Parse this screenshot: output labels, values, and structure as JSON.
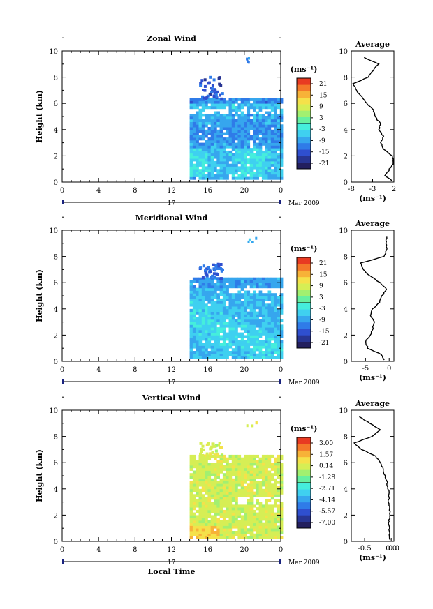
{
  "chart_data": [
    {
      "type": "heatmap",
      "title": "Zonal Wind",
      "ylabel": "Height (km)",
      "ylim": [
        0,
        10
      ],
      "xlim": [
        0,
        24
      ],
      "x_ticks": [
        "0",
        "4",
        "8",
        "12",
        "16",
        "20",
        "0"
      ],
      "y_ticks": [
        "0",
        "2",
        "4",
        "6",
        "8",
        "10"
      ],
      "day_label": "17",
      "date_label": "Mar 2009",
      "colorbar": {
        "unit": "(ms⁻¹)",
        "labels": [
          "21",
          "15",
          "9",
          "3",
          "-3",
          "-9",
          "-15",
          "-21"
        ],
        "range": [
          -24,
          24
        ]
      },
      "data_coverage": {
        "time_start": 14,
        "time_end": 24,
        "height_start": 0.2,
        "height_end": 6.4,
        "sparse_top": [
          7.5,
          9.6
        ]
      },
      "dominant_values": "-6 to -12",
      "average_profile": {
        "title": "Average",
        "xlabel": "(ms⁻¹)",
        "x_ticks": [
          "-8",
          "-3",
          "2"
        ],
        "xlim": [
          -8,
          2
        ],
        "heights": [
          0.1,
          0.5,
          1.0,
          1.5,
          2.0,
          2.5,
          3.0,
          3.5,
          4.0,
          4.5,
          5.0,
          5.5,
          6.0,
          6.5,
          7.0,
          7.5,
          8.0,
          8.5,
          9.0,
          9.5
        ],
        "values": [
          1.5,
          0.0,
          1.0,
          2.0,
          1.6,
          -0.5,
          -1.0,
          -0.5,
          -1.5,
          -1.2,
          -2.5,
          -2.8,
          -4.5,
          -5.5,
          -6.8,
          -7.5,
          -4.0,
          -3.0,
          -1.5,
          -5.0
        ]
      }
    },
    {
      "type": "heatmap",
      "title": "Meridional Wind",
      "ylabel": "Height (km)",
      "ylim": [
        0,
        10
      ],
      "xlim": [
        0,
        24
      ],
      "x_ticks": [
        "0",
        "4",
        "8",
        "12",
        "16",
        "20",
        "0"
      ],
      "y_ticks": [
        "0",
        "2",
        "4",
        "6",
        "8",
        "10"
      ],
      "day_label": "17",
      "date_label": "Mar 2009",
      "colorbar": {
        "unit": "(ms⁻¹)",
        "labels": [
          "21",
          "15",
          "9",
          "3",
          "-3",
          "-9",
          "-15",
          "-21"
        ],
        "range": [
          -24,
          24
        ]
      },
      "data_coverage": {
        "time_start": 14,
        "time_end": 24,
        "height_start": 0.2,
        "height_end": 6.4,
        "sparse_top": [
          7.0,
          9.5
        ]
      },
      "dominant_values": "-5 to -10",
      "average_profile": {
        "title": "Average",
        "xlabel": "(ms⁻¹)",
        "x_ticks": [
          "-5",
          "0"
        ],
        "xlim": [
          -8,
          1
        ],
        "heights": [
          0.1,
          0.5,
          1.0,
          1.5,
          2.0,
          2.5,
          3.0,
          3.5,
          4.0,
          4.5,
          5.0,
          5.5,
          6.0,
          6.5,
          7.0,
          7.5,
          8.0,
          8.5,
          9.0,
          9.5
        ],
        "values": [
          -1.0,
          -1.5,
          -4.5,
          -5.0,
          -4.0,
          -3.5,
          -3.0,
          -4.0,
          -3.5,
          -2.0,
          -1.5,
          -0.5,
          -2.0,
          -4.0,
          -5.5,
          -6.0,
          -1.0,
          -0.5,
          -0.7,
          -0.5
        ]
      }
    },
    {
      "type": "heatmap",
      "title": "Vertical Wind",
      "ylabel": "Height (km)",
      "xlabel": "Local Time",
      "ylim": [
        0,
        10
      ],
      "xlim": [
        0,
        24
      ],
      "x_ticks": [
        "0",
        "4",
        "8",
        "12",
        "16",
        "20",
        "0"
      ],
      "y_ticks": [
        "0",
        "2",
        "4",
        "6",
        "8",
        "10"
      ],
      "day_label": "17",
      "date_label": "Mar 2009",
      "colorbar": {
        "unit": "(ms⁻¹)",
        "labels": [
          "3.00",
          "1.57",
          "0.14",
          "-1.28",
          "-2.71",
          "-4.14",
          "-5.57",
          "-7.00"
        ],
        "range": [
          -8.0,
          4.0
        ]
      },
      "data_coverage": {
        "time_start": 14,
        "time_end": 24,
        "height_start": 0.2,
        "height_end": 6.5,
        "sparse_top": [
          7.0,
          9.5
        ]
      },
      "dominant_values": "0 to 0.5",
      "average_profile": {
        "title": "Average",
        "xlabel": "(ms⁻¹)",
        "x_ticks": [
          "-0.5",
          "0.0",
          "0.0"
        ],
        "xlim": [
          -0.75,
          0.05
        ],
        "heights": [
          0.1,
          0.5,
          1.0,
          1.5,
          2.0,
          2.5,
          3.0,
          3.5,
          4.0,
          4.5,
          5.0,
          5.5,
          6.0,
          6.5,
          7.0,
          7.5,
          8.0,
          8.5,
          9.0,
          9.5
        ],
        "values": [
          -0.02,
          -0.04,
          -0.03,
          -0.05,
          -0.02,
          -0.03,
          -0.05,
          -0.04,
          -0.06,
          -0.08,
          -0.12,
          -0.15,
          -0.2,
          -0.3,
          -0.55,
          -0.7,
          -0.35,
          -0.2,
          -0.4,
          -0.6
        ]
      }
    }
  ]
}
